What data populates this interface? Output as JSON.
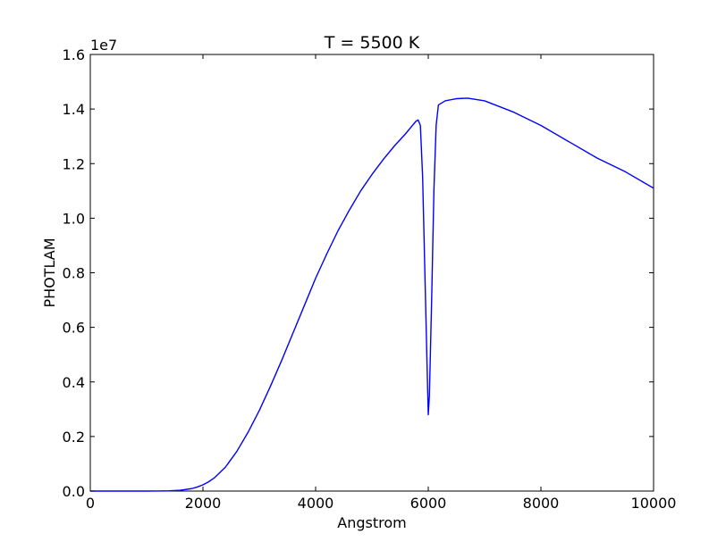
{
  "chart_data": {
    "type": "line",
    "title": "T = 5500 K",
    "xlabel": "Angstrom",
    "ylabel": "PHOTLAM",
    "y_offset_label": "1e7",
    "y_multiplier": 10000000,
    "xlim": [
      0,
      10000
    ],
    "ylim": [
      0,
      16000000
    ],
    "grid": false,
    "legend": "none",
    "line_color": "#0000ff",
    "x_ticks": [
      0,
      2000,
      4000,
      6000,
      8000,
      10000
    ],
    "x_tick_labels": [
      "0",
      "2000",
      "4000",
      "6000",
      "8000",
      "10000"
    ],
    "y_ticks": [
      0,
      2000000,
      4000000,
      6000000,
      8000000,
      10000000,
      12000000,
      14000000,
      16000000
    ],
    "y_tick_labels": [
      "0.0",
      "0.2",
      "0.4",
      "0.6",
      "0.8",
      "1.0",
      "1.2",
      "1.4",
      "1.6"
    ],
    "series": [
      {
        "x": [
          0,
          500,
          1000,
          1200,
          1400,
          1600,
          1800,
          1900,
          2000,
          2100,
          2200,
          2400,
          2600,
          2800,
          3000,
          3200,
          3400,
          3600,
          3800,
          4000,
          4200,
          4400,
          4600,
          4800,
          5000,
          5200,
          5400,
          5600,
          5700,
          5780,
          5820,
          5860,
          5900,
          5940,
          5980,
          6000,
          6020,
          6060,
          6100,
          6140,
          6180,
          6300,
          6500,
          6700,
          7000,
          7500,
          8000,
          8500,
          9000,
          9500,
          10000
        ],
        "y": [
          0,
          0,
          0,
          1000,
          8000,
          30000,
          90000,
          150000,
          230000,
          340000,
          480000,
          880000,
          1450000,
          2150000,
          2950000,
          3850000,
          4800000,
          5800000,
          6800000,
          7800000,
          8700000,
          9550000,
          10300000,
          11000000,
          11600000,
          12150000,
          12650000,
          13100000,
          13350000,
          13550000,
          13600000,
          13400000,
          11500000,
          8000000,
          4500000,
          2800000,
          3500000,
          7000000,
          11000000,
          13400000,
          14150000,
          14300000,
          14380000,
          14400000,
          14300000,
          13900000,
          13400000,
          12800000,
          12200000,
          11700000,
          11100000
        ]
      }
    ]
  }
}
